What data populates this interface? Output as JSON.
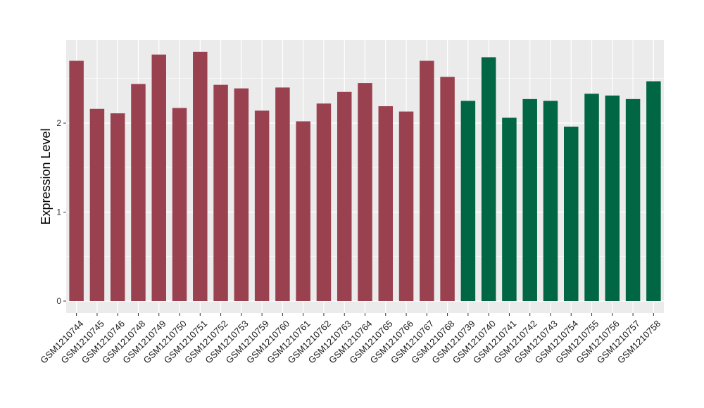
{
  "chart_data": {
    "type": "bar",
    "title": "",
    "xlabel": "",
    "ylabel": "Expression Level",
    "ylim": [
      0,
      2.9
    ],
    "yticks": [
      0,
      1,
      2
    ],
    "grid": true,
    "background": "#EBEBEB",
    "categories": [
      "GSM1210744",
      "GSM1210745",
      "GSM1210746",
      "GSM1210748",
      "GSM1210749",
      "GSM1210750",
      "GSM1210751",
      "GSM1210752",
      "GSM1210753",
      "GSM1210759",
      "GSM1210760",
      "GSM1210761",
      "GSM1210762",
      "GSM1210763",
      "GSM1210764",
      "GSM1210765",
      "GSM1210766",
      "GSM1210767",
      "GSM1210768",
      "GSM1210739",
      "GSM1210740",
      "GSM1210741",
      "GSM1210742",
      "GSM1210743",
      "GSM1210754",
      "GSM1210755",
      "GSM1210756",
      "GSM1210757",
      "GSM1210758"
    ],
    "values": [
      2.7,
      2.16,
      2.11,
      2.44,
      2.77,
      2.17,
      2.8,
      2.43,
      2.39,
      2.14,
      2.4,
      2.02,
      2.22,
      2.35,
      2.45,
      2.19,
      2.13,
      2.7,
      2.52,
      2.25,
      2.74,
      2.06,
      2.27,
      2.25,
      1.96,
      2.33,
      2.31,
      2.27,
      2.47
    ],
    "colors": [
      "#9A4150",
      "#9A4150",
      "#9A4150",
      "#9A4150",
      "#9A4150",
      "#9A4150",
      "#9A4150",
      "#9A4150",
      "#9A4150",
      "#9A4150",
      "#9A4150",
      "#9A4150",
      "#9A4150",
      "#9A4150",
      "#9A4150",
      "#9A4150",
      "#9A4150",
      "#9A4150",
      "#9A4150",
      "#006644",
      "#006644",
      "#006644",
      "#006644",
      "#006644",
      "#006644",
      "#006644",
      "#006644",
      "#006644",
      "#006644"
    ]
  }
}
